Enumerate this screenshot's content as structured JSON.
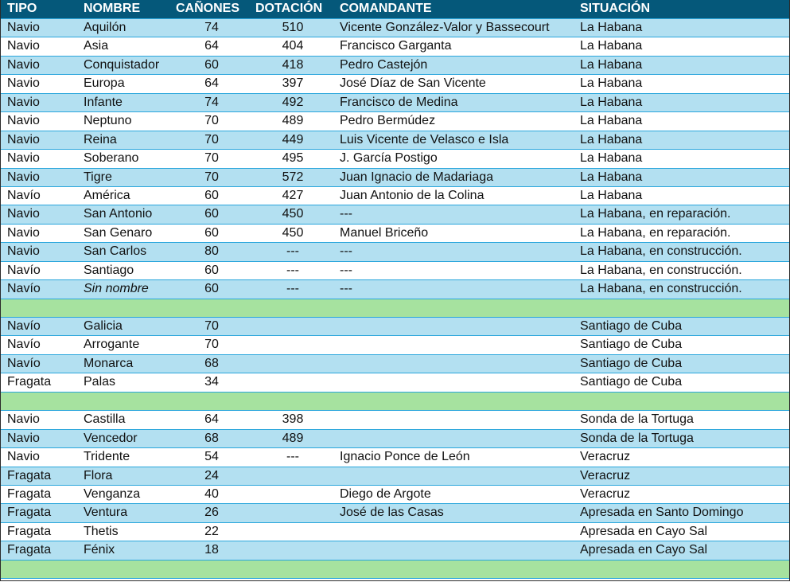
{
  "colors": {
    "header": "#05587a",
    "row_blue": "#b3e0f1",
    "row_white": "#ffffff",
    "separator_green": "#a6e29f",
    "grid_line": "#2aa6dc"
  },
  "headers": {
    "tipo": "TIPO",
    "nombre": "NOMBRE",
    "canones": "CAÑONES",
    "dotacion": "DOTACIÓN",
    "comandante": "COMANDANTE",
    "situacion": "SITUACIÓN"
  },
  "rows": [
    {
      "band": "blue",
      "tipo": "Navio",
      "nombre": "Aquilón",
      "canones": "74",
      "dotacion": "510",
      "comandante": "Vicente González-Valor y Bassecourt",
      "situacion": "La Habana"
    },
    {
      "band": "white",
      "tipo": "Navio",
      "nombre": "Asia",
      "canones": "64",
      "dotacion": "404",
      "comandante": "Francisco Garganta",
      "situacion": "La Habana"
    },
    {
      "band": "blue",
      "tipo": "Navio",
      "nombre": "Conquistador",
      "canones": "60",
      "dotacion": "418",
      "comandante": "Pedro Castejón",
      "situacion": "La Habana"
    },
    {
      "band": "white",
      "tipo": "Navio",
      "nombre": "Europa",
      "canones": "64",
      "dotacion": "397",
      "comandante": "José Díaz de San Vicente",
      "situacion": "La Habana"
    },
    {
      "band": "blue",
      "tipo": "Navio",
      "nombre": "Infante",
      "canones": "74",
      "dotacion": "492",
      "comandante": "Francisco de Medina",
      "situacion": "La Habana"
    },
    {
      "band": "white",
      "tipo": "Navio",
      "nombre": "Neptuno",
      "canones": "70",
      "dotacion": "489",
      "comandante": "Pedro Bermúdez",
      "situacion": "La Habana"
    },
    {
      "band": "blue",
      "tipo": "Navio",
      "nombre": "Reina",
      "canones": "70",
      "dotacion": "449",
      "comandante": "Luis Vicente de Velasco e Isla",
      "situacion": "La Habana"
    },
    {
      "band": "white",
      "tipo": "Navio",
      "nombre": "Soberano",
      "canones": "70",
      "dotacion": "495",
      "comandante": "J. García Postigo",
      "situacion": "La Habana"
    },
    {
      "band": "blue",
      "tipo": "Navio",
      "nombre": "Tigre",
      "canones": "70",
      "dotacion": "572",
      "comandante": "Juan Ignacio de Madariaga",
      "situacion": "La Habana"
    },
    {
      "band": "white",
      "tipo": "Navío",
      "nombre": "América",
      "canones": "60",
      "dotacion": "427",
      "comandante": "Juan Antonio de la Colina",
      "situacion": "La Habana"
    },
    {
      "band": "blue",
      "tipo": "Navio",
      "nombre": "San Antonio",
      "canones": "60",
      "dotacion": "450",
      "comandante": " ---",
      "situacion": "La Habana, en reparación."
    },
    {
      "band": "white",
      "tipo": "Navio",
      "nombre": "San Genaro",
      "canones": "60",
      "dotacion": "450",
      "comandante": "Manuel Briceño",
      "situacion": "La Habana, en reparación."
    },
    {
      "band": "blue",
      "tipo": "Navio",
      "nombre": "San Carlos",
      "canones": "80",
      "dotacion": "---",
      "comandante": " ---",
      "situacion": "La Habana, en construcción."
    },
    {
      "band": "white",
      "tipo": "Navío",
      "nombre": "Santiago",
      "canones": "60",
      "dotacion": "---",
      "comandante": " ---",
      "situacion": "La Habana, en construcción."
    },
    {
      "band": "blue",
      "tipo": "Navío",
      "nombre": "Sin nombre",
      "nombre_italic": true,
      "canones": "60",
      "dotacion": "---",
      "comandante": " ---",
      "situacion": "La Habana, en construcción."
    },
    {
      "band": "green"
    },
    {
      "band": "blue",
      "tipo": "Navío",
      "nombre": "Galicia",
      "canones": "70",
      "dotacion": "",
      "comandante": "",
      "situacion": "Santiago de Cuba"
    },
    {
      "band": "white",
      "tipo": "Navío",
      "nombre": "Arrogante",
      "canones": "70",
      "dotacion": "",
      "comandante": "",
      "situacion": "Santiago de Cuba"
    },
    {
      "band": "blue",
      "tipo": "Navío",
      "nombre": "Monarca",
      "canones": "68",
      "dotacion": "",
      "comandante": "",
      "situacion": "Santiago de Cuba"
    },
    {
      "band": "white",
      "tipo": "Fragata",
      "nombre": "Palas",
      "canones": "34",
      "dotacion": "",
      "comandante": "",
      "situacion": "Santiago de Cuba"
    },
    {
      "band": "green"
    },
    {
      "band": "white",
      "tipo": "Navio",
      "nombre": "Castilla",
      "canones": "64",
      "dotacion": "398",
      "comandante": "",
      "situacion": "Sonda de la Tortuga"
    },
    {
      "band": "blue",
      "tipo": "Navio",
      "nombre": "Vencedor",
      "canones": "68",
      "dotacion": "489",
      "comandante": "",
      "situacion": "Sonda de la Tortuga"
    },
    {
      "band": "white",
      "tipo": "Navio",
      "nombre": "Tridente",
      "canones": "54",
      "dotacion": "---",
      "comandante": "Ignacio Ponce de León",
      "situacion": "Veracruz"
    },
    {
      "band": "blue",
      "tipo": "Fragata",
      "nombre": "Flora",
      "canones": "24",
      "dotacion": "",
      "comandante": "",
      "situacion": "Veracruz"
    },
    {
      "band": "white",
      "tipo": "Fragata",
      "nombre": "Venganza",
      "canones": "40",
      "dotacion": "",
      "comandante": "Diego de Argote",
      "situacion": "Veracruz"
    },
    {
      "band": "blue",
      "tipo": "Fragata",
      "nombre": "Ventura",
      "canones": "26",
      "dotacion": "",
      "comandante": "José de las Casas",
      "situacion": "Apresada en Santo Domingo"
    },
    {
      "band": "white",
      "tipo": "Fragata",
      "nombre": "Thetis",
      "canones": "22",
      "dotacion": "",
      "comandante": "",
      "situacion": "Apresada en Cayo Sal"
    },
    {
      "band": "blue",
      "tipo": "Fragata",
      "nombre": "Fénix",
      "canones": "18",
      "dotacion": "",
      "comandante": "",
      "situacion": "Apresada en Cayo Sal"
    },
    {
      "band": "green"
    }
  ]
}
